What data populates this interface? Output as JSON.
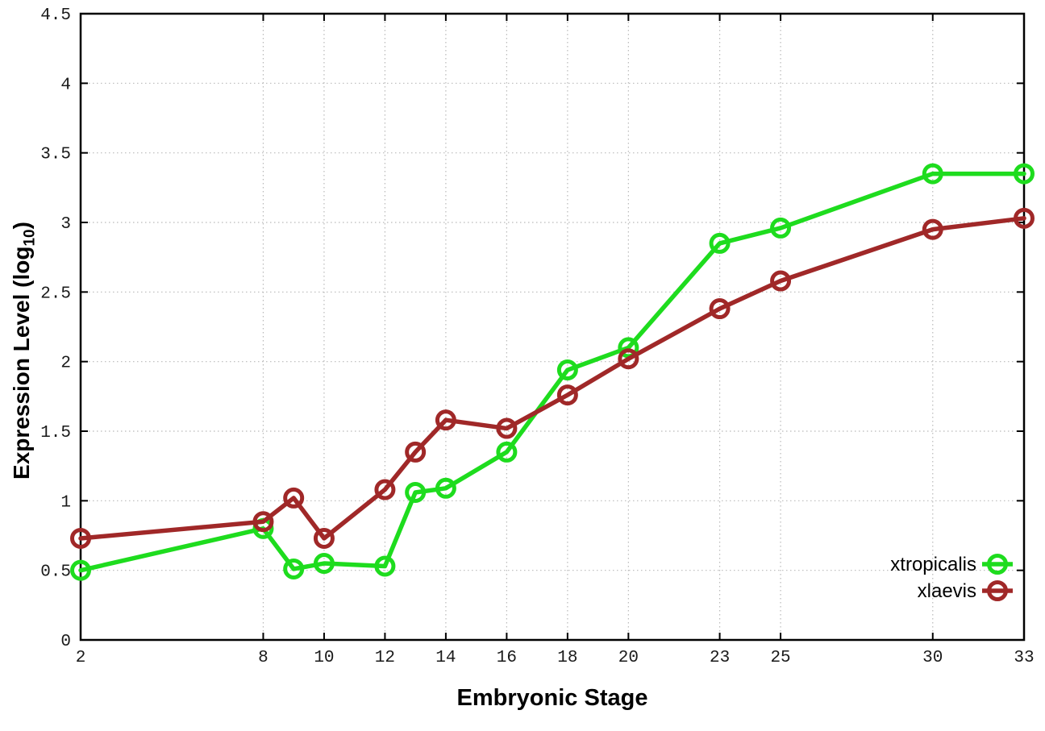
{
  "figure": {
    "background": "#ffffff",
    "axis_color": "#000000",
    "grid_color": "#b9b9b9",
    "tick_label_color": "#1a1a1a"
  },
  "chart_data": {
    "type": "line",
    "title": "",
    "xlabel": "Embryonic Stage",
    "ylabel": "Expression Level (log10)",
    "ylabel_parts": {
      "prefix": "Expression Level (log",
      "sub": "10",
      "suffix": ")"
    },
    "x": [
      2,
      8,
      9,
      10,
      12,
      13,
      14,
      16,
      18,
      20,
      23,
      25,
      30,
      33
    ],
    "x_ticks": [
      2,
      8,
      10,
      12,
      14,
      16,
      18,
      20,
      23,
      25,
      30,
      33
    ],
    "y_ticks": [
      0,
      0.5,
      1,
      1.5,
      2,
      2.5,
      3,
      3.5,
      4,
      4.5
    ],
    "xlim": [
      2,
      33
    ],
    "ylim": [
      0,
      4.5
    ],
    "grid": true,
    "legend_position": "inside right bottom",
    "series": [
      {
        "name": "xtropicalis",
        "color": "#1edc1e",
        "marker": "open-circle",
        "values": [
          0.5,
          0.8,
          0.51,
          0.55,
          0.53,
          1.06,
          1.09,
          1.35,
          1.94,
          2.1,
          2.85,
          2.96,
          3.35,
          3.35
        ]
      },
      {
        "name": "xlaevis",
        "color": "#a02828",
        "marker": "open-circle",
        "values": [
          0.73,
          0.85,
          1.02,
          0.73,
          1.08,
          1.35,
          1.58,
          1.52,
          1.76,
          2.02,
          2.38,
          2.58,
          2.95,
          3.03
        ]
      }
    ]
  }
}
